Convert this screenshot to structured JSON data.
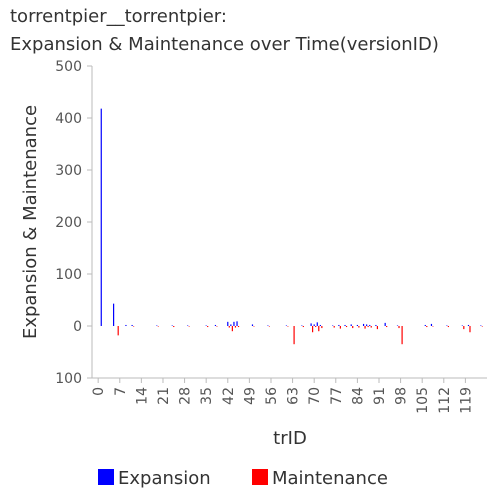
{
  "chart_data": {
    "type": "bar",
    "title": [
      "torrentpier__torrentpier:",
      "Expansion & Maintenance over Time(versionID)"
    ],
    "x_label": "trID",
    "y_label": "Expansion & Maintenance",
    "x": [
      1,
      5,
      6,
      9,
      11,
      19,
      24,
      29,
      35,
      38,
      42,
      43,
      44,
      45,
      50,
      55,
      61,
      63,
      66,
      69,
      70,
      71,
      72,
      76,
      78,
      80,
      82,
      84,
      86,
      87,
      88,
      90,
      93,
      97,
      98,
      106,
      108,
      113,
      118,
      120,
      124
    ],
    "series": [
      {
        "name": "Expansion",
        "color": "#0000ff",
        "values": [
          418,
          43,
          0,
          2,
          2,
          1,
          1,
          1,
          1,
          2,
          8,
          3,
          8,
          9,
          3,
          1,
          1,
          0,
          1,
          5,
          3,
          7,
          2,
          1,
          2,
          2,
          3,
          2,
          4,
          3,
          2,
          2,
          6,
          1,
          0,
          2,
          4,
          1,
          1,
          2,
          1
        ]
      },
      {
        "name": "Maintenance",
        "color": "#ff0000",
        "values": [
          0,
          0,
          -18,
          0,
          -1,
          -1,
          -2,
          -1,
          -2,
          -1,
          -3,
          -10,
          -3,
          -2,
          -1,
          -1,
          -1,
          -35,
          -2,
          -12,
          -2,
          -10,
          -4,
          -3,
          -5,
          -2,
          -4,
          -3,
          -5,
          -2,
          -3,
          -6,
          -2,
          -4,
          -35,
          -2,
          -1,
          -2,
          -6,
          -12,
          -1
        ]
      }
    ],
    "xlim": [
      -2,
      126
    ],
    "xticks": [
      0,
      7,
      14,
      21,
      28,
      35,
      42,
      49,
      56,
      63,
      70,
      77,
      84,
      91,
      98,
      105,
      112,
      119
    ],
    "ylim": [
      -100,
      500
    ],
    "yticks": [
      {
        "value": -100,
        "label": "100"
      },
      0,
      100,
      200,
      300,
      400,
      500
    ],
    "legend": "bottom"
  }
}
